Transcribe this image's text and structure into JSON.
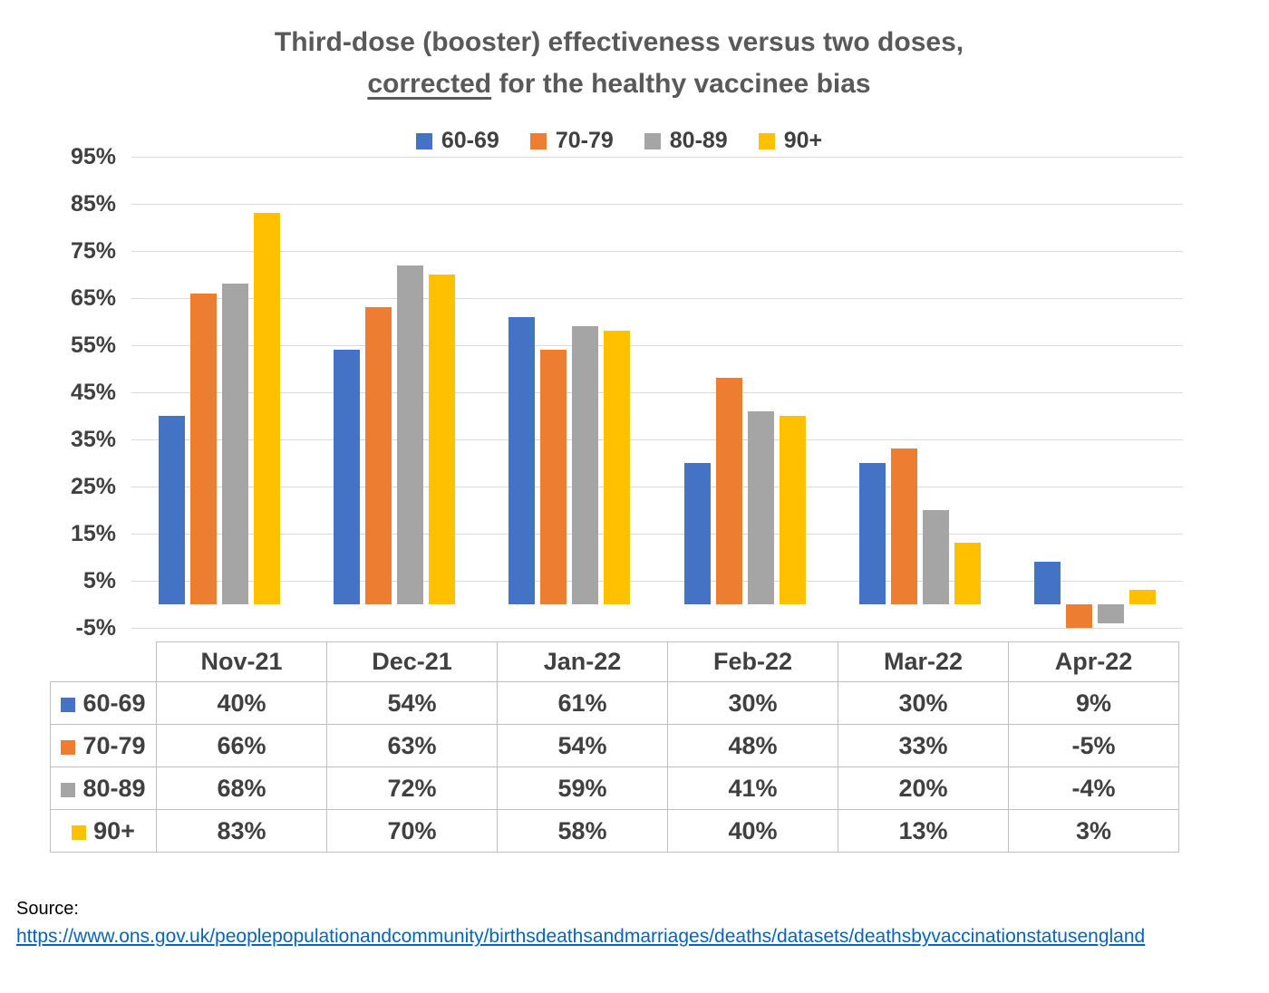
{
  "title": {
    "line1": "Third-dose (booster) effectiveness versus two doses,",
    "line2_underlined": "corrected",
    "line2_rest": " for the healthy vaccinee bias"
  },
  "chart_data": {
    "type": "bar",
    "title": "Third-dose (booster) effectiveness versus two doses, corrected for the healthy vaccinee bias",
    "categories": [
      "Nov-21",
      "Dec-21",
      "Jan-22",
      "Feb-22",
      "Mar-22",
      "Apr-22"
    ],
    "series": [
      {
        "name": "60-69",
        "color": "#4472C4",
        "values": [
          40,
          54,
          61,
          30,
          30,
          9
        ]
      },
      {
        "name": "70-79",
        "color": "#ED7D31",
        "values": [
          66,
          63,
          54,
          48,
          33,
          -5
        ]
      },
      {
        "name": "80-89",
        "color": "#A5A5A5",
        "values": [
          68,
          72,
          59,
          41,
          20,
          -4
        ]
      },
      {
        "name": "90+",
        "color": "#FFC000",
        "values": [
          83,
          70,
          58,
          40,
          13,
          3
        ]
      }
    ],
    "ylim": [
      -5,
      95
    ],
    "yticks": [
      95,
      85,
      75,
      65,
      55,
      45,
      35,
      25,
      15,
      5,
      -5
    ],
    "ytick_suffix": "%",
    "grid": true,
    "legend_position": "top",
    "value_suffix": "%"
  },
  "source": {
    "label": "Source:",
    "url_text": "https://www.ons.gov.uk/peoplepopulationandcommunity/birthsdeathsandmarriages/deaths/datasets/deathsbyvaccinationstatusengland"
  }
}
